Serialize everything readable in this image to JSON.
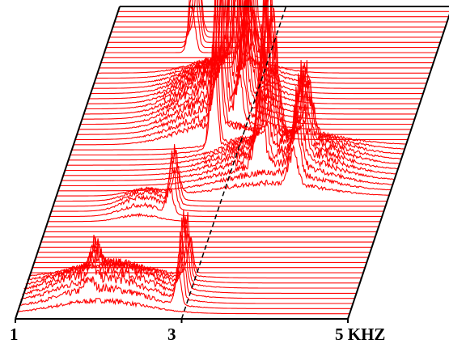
{
  "chart_data": {
    "type": "waterfall",
    "title": "",
    "xlabel": "",
    "ylabel": "",
    "x_unit": "KHZ",
    "xlim": [
      1,
      5
    ],
    "x_ticks": [
      {
        "value": 1,
        "label": "1"
      },
      {
        "value": 3,
        "label": "3"
      },
      {
        "value": 5,
        "label": "5 KHZ"
      }
    ],
    "trace_count": 62,
    "trace_color": "#ff0000",
    "background_color": "#ffffff",
    "frame_color": "#000000",
    "dashed_reference_x": 3,
    "grid": false,
    "legend": "none",
    "spectral_peaks": [
      {
        "center_khz": 2.0,
        "first_trace": 1,
        "last_trace": 8,
        "max_height": 0.12,
        "width_khz": 0.9
      },
      {
        "center_khz": 2.92,
        "first_trace": 2,
        "last_trace": 9,
        "max_height": 0.28,
        "width_khz": 0.06
      },
      {
        "center_khz": 1.85,
        "first_trace": 2,
        "last_trace": 7,
        "max_height": 0.1,
        "width_khz": 0.08
      },
      {
        "center_khz": 2.45,
        "first_trace": 20,
        "last_trace": 24,
        "max_height": 0.22,
        "width_khz": 0.07
      },
      {
        "center_khz": 2.1,
        "first_trace": 19,
        "last_trace": 24,
        "max_height": 0.06,
        "width_khz": 0.4
      },
      {
        "center_khz": 3.4,
        "first_trace": 26,
        "last_trace": 36,
        "max_height": 0.6,
        "width_khz": 0.09
      },
      {
        "center_khz": 3.85,
        "first_trace": 24,
        "last_trace": 34,
        "max_height": 0.3,
        "width_khz": 0.09
      },
      {
        "center_khz": 3.6,
        "first_trace": 24,
        "last_trace": 34,
        "max_height": 0.12,
        "width_khz": 1.0
      },
      {
        "center_khz": 2.72,
        "first_trace": 32,
        "last_trace": 55,
        "max_height": 0.92,
        "width_khz": 0.07
      },
      {
        "center_khz": 2.95,
        "first_trace": 36,
        "last_trace": 46,
        "max_height": 0.35,
        "width_khz": 0.07
      },
      {
        "center_khz": 2.6,
        "first_trace": 34,
        "last_trace": 48,
        "max_height": 0.15,
        "width_khz": 0.7
      },
      {
        "center_khz": 2.05,
        "first_trace": 52,
        "last_trace": 56,
        "max_height": 0.42,
        "width_khz": 0.07
      }
    ]
  }
}
